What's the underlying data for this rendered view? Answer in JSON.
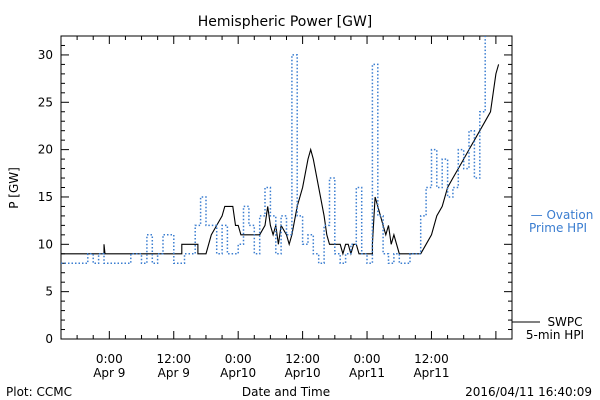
{
  "chart_data": {
    "type": "line",
    "title": "Hemispheric Power [GW]",
    "ylabel": "P [GW]",
    "xlabel": "Date and Time",
    "ylim": [
      0,
      32
    ],
    "yticks": [
      0,
      5,
      10,
      15,
      20,
      25,
      30
    ],
    "xlim": [
      -9,
      75
    ],
    "xticks": [
      {
        "x": 0,
        "top": "0:00",
        "bottom": "Apr 9"
      },
      {
        "x": 12,
        "top": "12:00",
        "bottom": "Apr 9"
      },
      {
        "x": 24,
        "top": "0:00",
        "bottom": "Apr10"
      },
      {
        "x": 36,
        "top": "12:00",
        "bottom": "Apr10"
      },
      {
        "x": 48,
        "top": "0:00",
        "bottom": "Apr11"
      },
      {
        "x": 60,
        "top": "12:00",
        "bottom": "Apr11"
      }
    ],
    "series": [
      {
        "name": "SWPC 5-min HPI",
        "style": "solid",
        "color": "#000000",
        "points": [
          [
            -9,
            9
          ],
          [
            -1,
            9
          ],
          [
            -1,
            10
          ],
          [
            -0.8,
            9
          ],
          [
            12,
            9
          ],
          [
            13.5,
            9
          ],
          [
            13.5,
            10
          ],
          [
            16.5,
            10
          ],
          [
            16.5,
            9
          ],
          [
            18,
            9
          ],
          [
            19,
            11
          ],
          [
            20,
            12
          ],
          [
            21,
            13
          ],
          [
            21.5,
            14
          ],
          [
            22,
            14
          ],
          [
            23,
            14
          ],
          [
            23.5,
            12
          ],
          [
            24,
            12
          ],
          [
            24.5,
            11
          ],
          [
            25,
            11
          ],
          [
            26,
            11
          ],
          [
            27,
            11
          ],
          [
            28,
            11
          ],
          [
            29,
            12
          ],
          [
            29.5,
            14
          ],
          [
            30,
            12
          ],
          [
            30.5,
            11
          ],
          [
            31,
            12
          ],
          [
            31.5,
            10
          ],
          [
            32,
            12
          ],
          [
            33,
            11
          ],
          [
            33.5,
            10
          ],
          [
            34,
            11
          ],
          [
            35,
            14
          ],
          [
            36,
            16
          ],
          [
            37,
            19
          ],
          [
            37.5,
            20
          ],
          [
            38,
            19
          ],
          [
            39,
            16
          ],
          [
            40,
            13
          ],
          [
            40.5,
            11
          ],
          [
            41,
            10
          ],
          [
            43,
            10
          ],
          [
            43.5,
            9
          ],
          [
            44,
            10
          ],
          [
            44.5,
            10
          ],
          [
            45,
            9
          ],
          [
            45.5,
            10
          ],
          [
            46,
            10
          ],
          [
            46.5,
            9
          ],
          [
            49,
            9
          ],
          [
            49,
            10
          ],
          [
            49.5,
            15
          ],
          [
            50,
            14
          ],
          [
            51,
            12
          ],
          [
            51.5,
            11
          ],
          [
            52,
            12
          ],
          [
            52.5,
            10
          ],
          [
            53,
            11
          ],
          [
            53.5,
            10
          ],
          [
            54,
            9
          ],
          [
            58,
            9
          ],
          [
            59,
            10
          ],
          [
            60,
            11
          ],
          [
            61,
            13
          ],
          [
            62,
            14
          ],
          [
            63,
            16
          ],
          [
            64,
            17
          ],
          [
            65,
            18
          ],
          [
            66,
            19
          ],
          [
            67,
            20
          ],
          [
            68,
            21
          ],
          [
            69,
            22
          ],
          [
            70,
            23
          ],
          [
            71,
            24
          ],
          [
            71.5,
            26
          ],
          [
            72,
            28
          ],
          [
            72.5,
            29
          ]
        ]
      },
      {
        "name": "Ovation Prime HPI",
        "style": "dotted",
        "color": "#3a7dd0",
        "points": [
          [
            -9,
            8
          ],
          [
            -4,
            8
          ],
          [
            -4,
            9
          ],
          [
            -3,
            9
          ],
          [
            -3,
            8
          ],
          [
            -2,
            8
          ],
          [
            -2,
            9
          ],
          [
            -1,
            9
          ],
          [
            -1,
            8
          ],
          [
            4,
            8
          ],
          [
            4,
            9
          ],
          [
            6,
            9
          ],
          [
            6,
            8
          ],
          [
            7,
            8
          ],
          [
            7,
            11
          ],
          [
            8,
            11
          ],
          [
            8,
            8
          ],
          [
            9,
            8
          ],
          [
            9,
            9
          ],
          [
            10,
            9
          ],
          [
            10,
            11
          ],
          [
            12,
            11
          ],
          [
            12,
            8
          ],
          [
            14,
            8
          ],
          [
            14,
            9
          ],
          [
            16,
            9
          ],
          [
            16,
            12
          ],
          [
            17,
            12
          ],
          [
            17,
            15
          ],
          [
            18,
            15
          ],
          [
            18,
            12
          ],
          [
            20,
            12
          ],
          [
            20,
            9
          ],
          [
            21,
            9
          ],
          [
            21,
            12
          ],
          [
            22,
            12
          ],
          [
            22,
            9
          ],
          [
            24,
            9
          ],
          [
            24,
            10
          ],
          [
            25,
            10
          ],
          [
            25,
            14
          ],
          [
            26,
            14
          ],
          [
            26,
            12
          ],
          [
            27,
            12
          ],
          [
            27,
            9
          ],
          [
            28,
            9
          ],
          [
            28,
            13
          ],
          [
            29,
            13
          ],
          [
            29,
            16
          ],
          [
            30,
            16
          ],
          [
            30,
            13
          ],
          [
            31,
            13
          ],
          [
            31,
            9
          ],
          [
            32,
            9
          ],
          [
            32,
            13
          ],
          [
            33,
            13
          ],
          [
            33,
            11
          ],
          [
            34,
            11
          ],
          [
            34,
            30
          ],
          [
            35,
            30
          ],
          [
            35,
            13
          ],
          [
            36,
            13
          ],
          [
            36,
            10
          ],
          [
            37,
            10
          ],
          [
            37,
            11
          ],
          [
            38,
            11
          ],
          [
            38,
            9
          ],
          [
            39,
            9
          ],
          [
            39,
            8
          ],
          [
            40,
            8
          ],
          [
            40,
            12
          ],
          [
            41,
            12
          ],
          [
            41,
            17
          ],
          [
            42,
            17
          ],
          [
            42,
            9
          ],
          [
            43,
            9
          ],
          [
            43,
            8
          ],
          [
            44,
            8
          ],
          [
            44,
            9
          ],
          [
            45,
            9
          ],
          [
            45,
            10
          ],
          [
            46,
            10
          ],
          [
            46,
            16
          ],
          [
            47,
            16
          ],
          [
            47,
            9
          ],
          [
            48,
            9
          ],
          [
            48,
            8
          ],
          [
            49,
            8
          ],
          [
            49,
            29
          ],
          [
            50,
            29
          ],
          [
            50,
            13
          ],
          [
            51,
            13
          ],
          [
            51,
            9
          ],
          [
            52,
            9
          ],
          [
            52,
            8
          ],
          [
            53,
            8
          ],
          [
            53,
            9
          ],
          [
            54,
            9
          ],
          [
            54,
            8
          ],
          [
            56,
            8
          ],
          [
            56,
            9
          ],
          [
            58,
            9
          ],
          [
            58,
            13
          ],
          [
            59,
            13
          ],
          [
            59,
            16
          ],
          [
            60,
            16
          ],
          [
            60,
            20
          ],
          [
            61,
            20
          ],
          [
            61,
            16
          ],
          [
            62,
            16
          ],
          [
            62,
            19
          ],
          [
            63,
            19
          ],
          [
            63,
            15
          ],
          [
            64,
            15
          ],
          [
            64,
            16
          ],
          [
            65,
            16
          ],
          [
            65,
            20
          ],
          [
            66,
            20
          ],
          [
            66,
            18
          ],
          [
            67,
            18
          ],
          [
            67,
            22
          ],
          [
            68,
            22
          ],
          [
            68,
            17
          ],
          [
            69,
            17
          ],
          [
            69,
            24
          ],
          [
            70,
            24
          ],
          [
            70,
            32
          ]
        ]
      }
    ]
  },
  "legend": {
    "swpc_line1": "SWPC",
    "swpc_line2": "5-min HPI",
    "ovation_line1": "— Ovation",
    "ovation_line2": "Prime HPI"
  },
  "footer": {
    "plot_credit": "Plot: CCMC",
    "timestamp": "2016/04/11 16:40:09"
  }
}
